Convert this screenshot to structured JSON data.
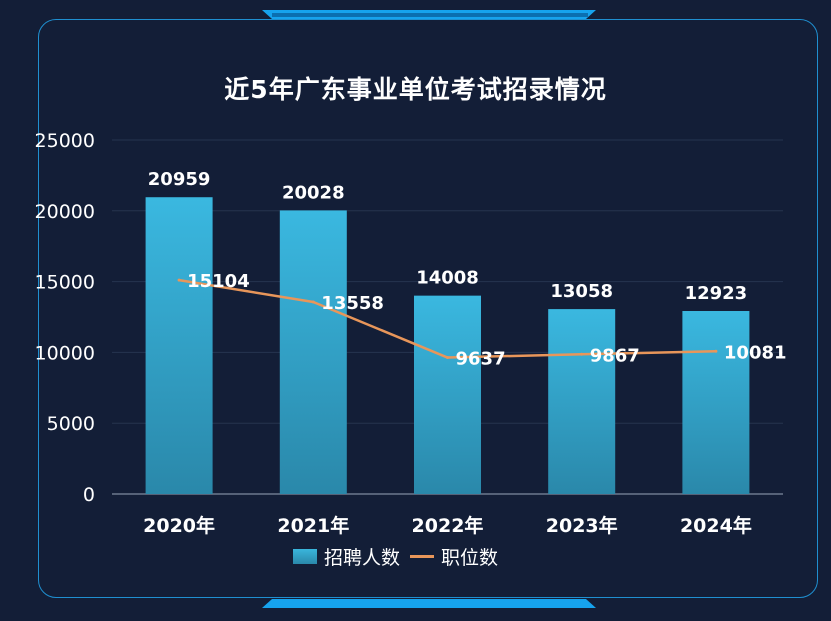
{
  "chart_data": {
    "type": "bar",
    "title": "近5年广东事业单位考试招录情况",
    "categories": [
      "2020年",
      "2021年",
      "2022年",
      "2023年",
      "2024年"
    ],
    "series": [
      {
        "name": "招聘人数",
        "type": "bar",
        "values": [
          20959,
          20028,
          14008,
          13058,
          12923
        ]
      },
      {
        "name": "职位数",
        "type": "line",
        "values": [
          15104,
          13558,
          9637,
          9867,
          10081
        ]
      }
    ],
    "ylim": [
      0,
      25000
    ],
    "yticks": [
      "0",
      "5000",
      "10000",
      "15000",
      "20000",
      "25000"
    ],
    "grid": true,
    "legend": "bottom",
    "colors": {
      "bar_top": "#3ab5dc",
      "bar_bottom": "#2a88aa",
      "line": "#e8965a",
      "background": "#131e37",
      "frame": "#1f8fd0"
    }
  }
}
